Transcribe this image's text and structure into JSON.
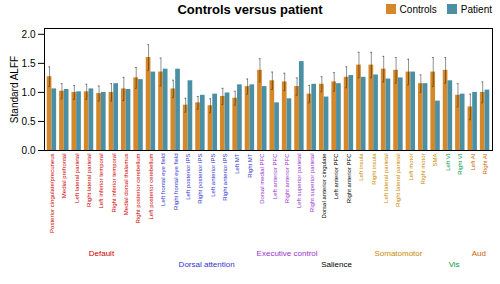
{
  "chart_data": {
    "type": "bar",
    "title": "Controls versus patient",
    "ylabel": "Standard ALFF",
    "categories": [
      "Posterior cingulate/precuneus",
      "Medial prefrontal",
      "Left lateral parietal",
      "Right lateral parietal",
      "Left inferior temporal",
      "Right inferior temporal",
      "Medial dorsal thalamus",
      "Right posterior cerebellum",
      "Left posterior cerebellum",
      "Left frontal eye field",
      "Right frontal eye field",
      "Left posterior IPS",
      "Right posterior IPS",
      "Left anterior IPS",
      "Right anterior IPS",
      "Left MT",
      "Right MT",
      "Dorsal medial PFC",
      "Left anterior PFC",
      "Right anterior PFC",
      "Left superior parietal",
      "Right superior parietal",
      "Dorsal anterior cingulate",
      "Left anterior PFC",
      "Right anterior PFC",
      "Left insula",
      "Right insula",
      "Left lateral parietal",
      "Right lateral parietal",
      "Left motor",
      "Right motor",
      "SMA",
      "Left VI",
      "Right VI",
      "Left AI",
      "Right AI"
    ],
    "series": [
      {
        "name": "Controls",
        "color": "#D4882A",
        "values": [
          1.27,
          1.02,
          1.0,
          1.01,
          0.98,
          1.0,
          1.06,
          1.25,
          1.6,
          1.35,
          1.06,
          0.78,
          0.82,
          0.77,
          0.93,
          0.9,
          1.1,
          1.38,
          1.2,
          1.18,
          1.1,
          0.97,
          1.14,
          1.18,
          1.26,
          1.47,
          1.47,
          1.4,
          1.38,
          1.35,
          1.15,
          1.35,
          1.38,
          0.95,
          0.75,
          1.0
        ],
        "error": [
          0.17,
          0.13,
          0.12,
          0.13,
          0.13,
          0.15,
          0.2,
          0.18,
          0.22,
          0.24,
          0.15,
          0.12,
          0.11,
          0.12,
          0.14,
          0.12,
          0.13,
          0.2,
          0.15,
          0.15,
          0.15,
          0.15,
          0.13,
          0.16,
          0.18,
          0.22,
          0.22,
          0.22,
          0.22,
          0.22,
          0.15,
          0.25,
          0.22,
          0.2,
          0.22,
          0.18
        ]
      },
      {
        "name": "Patient",
        "color": "#4A8FA4",
        "values": [
          1.06,
          1.05,
          1.01,
          1.06,
          1.0,
          1.15,
          1.05,
          1.22,
          1.35,
          1.4,
          1.4,
          1.2,
          0.95,
          0.97,
          0.99,
          1.13,
          1.13,
          1.1,
          0.82,
          0.89,
          1.53,
          1.14,
          0.92,
          1.15,
          1.29,
          1.26,
          1.3,
          1.23,
          1.25,
          1.35,
          1.15,
          0.85,
          1.2,
          0.97,
          1.0,
          1.04
        ]
      }
    ],
    "ylim": [
      0.0,
      2.1
    ],
    "yticks": [
      {
        "value": 0.0,
        "label": "0.0"
      },
      {
        "value": 0.5,
        "label": "0.5"
      },
      {
        "value": 1.0,
        "label": "1.0"
      },
      {
        "value": 1.5,
        "label": "1.5"
      },
      {
        "value": 2.0,
        "label": "2.0"
      }
    ],
    "grid": false,
    "legend": "upper right",
    "groups": [
      {
        "name": "Default",
        "color": "#CC0000",
        "range": [
          0,
          8
        ]
      },
      {
        "name": "Dorsal attention",
        "color": "#3333CC",
        "range": [
          9,
          16
        ]
      },
      {
        "name": "Executive control",
        "color": "#9933CC",
        "range": [
          17,
          21
        ]
      },
      {
        "name": "Salience",
        "color": "#000000",
        "range": [
          22,
          24
        ]
      },
      {
        "name": "Somatomotor",
        "color": "#CC8800",
        "range": [
          25,
          31
        ]
      },
      {
        "name": "Vis",
        "color": "#009944",
        "range": [
          32,
          33
        ]
      },
      {
        "name": "Aud",
        "color": "#CC6600",
        "range": [
          34,
          35
        ]
      }
    ]
  }
}
